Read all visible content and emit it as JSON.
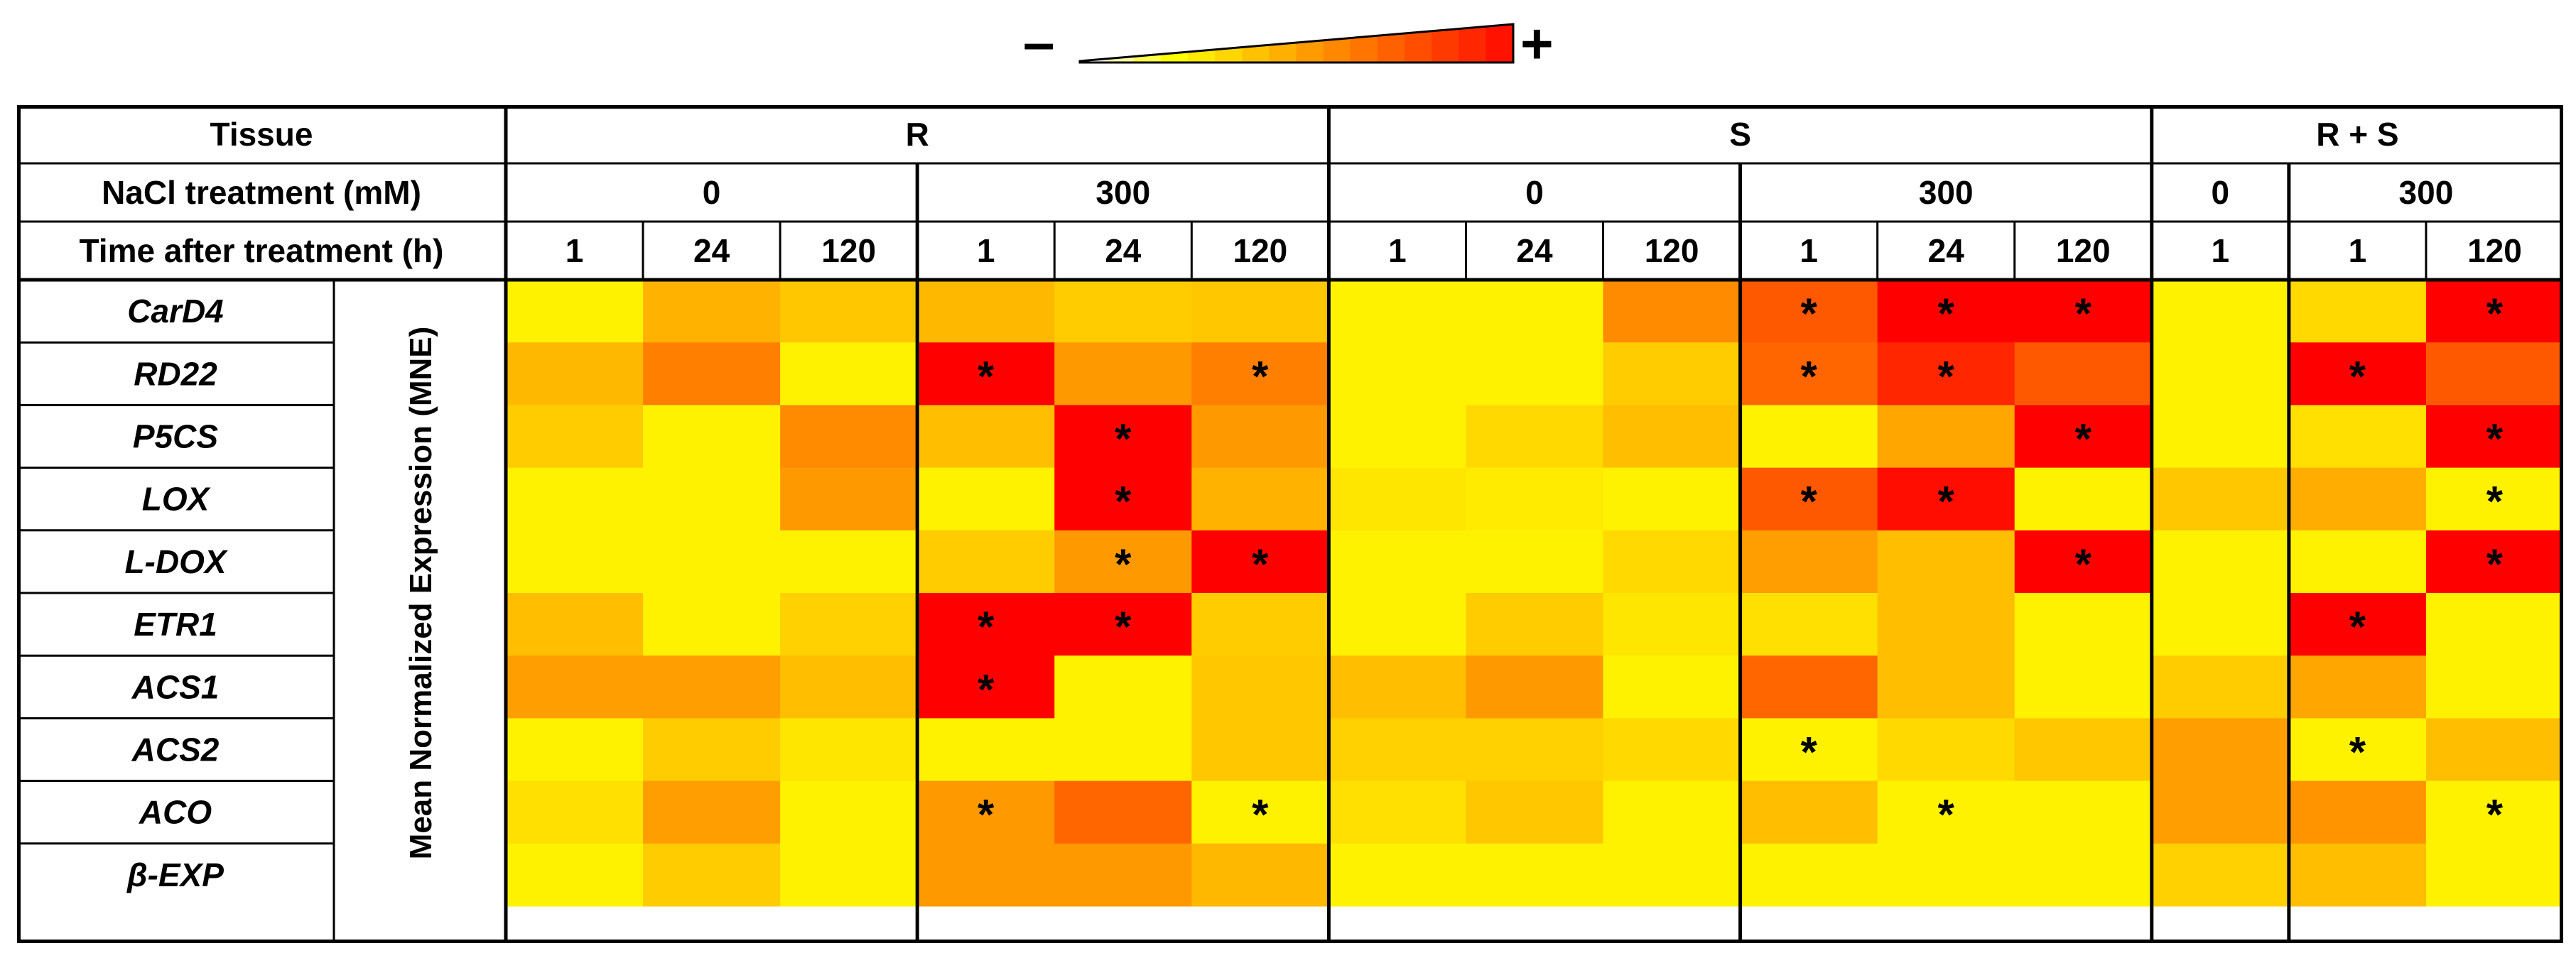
{
  "legend": {
    "minus": "–",
    "plus": "+",
    "low_color": "#ffffff",
    "mid_color": "#ffff00",
    "high_color": "#ff0000"
  },
  "table": {
    "tissue_header": "Tissue",
    "nacl_header": "NaCl treatment (mM)",
    "time_header": "Time after treatment (h)",
    "side_label": "Mean Normalized Expression (MNE)",
    "tissues": [
      {
        "label": "R",
        "span": 6
      },
      {
        "label": "S",
        "span": 6
      },
      {
        "label": "R + S",
        "span": 3
      }
    ],
    "nacl": [
      {
        "label": "0",
        "span": 3
      },
      {
        "label": "300",
        "span": 3
      },
      {
        "label": "0",
        "span": 3
      },
      {
        "label": "300",
        "span": 3
      },
      {
        "label": "0",
        "span": 1
      },
      {
        "label": "300",
        "span": 2
      }
    ],
    "times": [
      "1",
      "24",
      "120",
      "1",
      "24",
      "120",
      "1",
      "24",
      "120",
      "1",
      "24",
      "120",
      "1",
      "1",
      "120"
    ]
  },
  "chart_data": {
    "type": "heatmap",
    "title": "",
    "scale": {
      "min_label": "–",
      "max_label": "+",
      "range": [
        0,
        1
      ]
    },
    "genes": [
      "CarD4",
      "RD22",
      "P5CS",
      "LOX",
      "L-DOX",
      "ETR1",
      "ACS1",
      "ACS2",
      "ACO",
      "β-EXP"
    ],
    "columns": [
      "R 0mM 1h",
      "R 0mM 24h",
      "R 0mM 120h",
      "R 300mM 1h",
      "R 300mM 24h",
      "R 300mM 120h",
      "S 0mM 1h",
      "S 0mM 24h",
      "S 0mM 120h",
      "S 300mM 1h",
      "S 300mM 24h",
      "S 300mM 120h",
      "R+S 0mM 1h",
      "R+S 300mM 1h",
      "R+S 300mM 120h"
    ],
    "values": [
      [
        0.05,
        0.3,
        0.22,
        0.28,
        0.2,
        0.22,
        0.05,
        0.05,
        0.45,
        0.65,
        1.0,
        1.0,
        0.05,
        0.15,
        1.0
      ],
      [
        0.28,
        0.5,
        0.05,
        1.0,
        0.4,
        0.5,
        0.05,
        0.05,
        0.2,
        0.6,
        0.85,
        0.65,
        0.05,
        1.0,
        0.65
      ],
      [
        0.2,
        0.05,
        0.45,
        0.25,
        1.0,
        0.4,
        0.05,
        0.15,
        0.25,
        0.05,
        0.35,
        1.0,
        0.05,
        0.12,
        1.0
      ],
      [
        0.05,
        0.05,
        0.4,
        0.05,
        1.0,
        0.3,
        0.1,
        0.08,
        0.05,
        0.65,
        0.95,
        0.05,
        0.22,
        0.32,
        0.05
      ],
      [
        0.05,
        0.05,
        0.05,
        0.2,
        0.4,
        1.0,
        0.05,
        0.05,
        0.15,
        0.38,
        0.25,
        1.0,
        0.05,
        0.05,
        1.0
      ],
      [
        0.25,
        0.05,
        0.18,
        1.0,
        1.0,
        0.2,
        0.05,
        0.2,
        0.1,
        0.12,
        0.25,
        0.05,
        0.05,
        1.0,
        0.05
      ],
      [
        0.38,
        0.38,
        0.25,
        1.0,
        0.05,
        0.22,
        0.25,
        0.4,
        0.05,
        0.6,
        0.25,
        0.05,
        0.2,
        0.35,
        0.05
      ],
      [
        0.05,
        0.2,
        0.1,
        0.05,
        0.05,
        0.22,
        0.18,
        0.18,
        0.15,
        0.05,
        0.15,
        0.22,
        0.38,
        0.05,
        0.25
      ],
      [
        0.12,
        0.38,
        0.05,
        0.4,
        0.6,
        0.05,
        0.12,
        0.22,
        0.05,
        0.25,
        0.05,
        0.05,
        0.38,
        0.42,
        0.05
      ],
      [
        0.05,
        0.2,
        0.05,
        0.4,
        0.4,
        0.28,
        0.05,
        0.05,
        0.05,
        0.05,
        0.05,
        0.05,
        0.18,
        0.25,
        0.05
      ]
    ],
    "significant": [
      [
        0,
        0,
        0,
        0,
        0,
        0,
        0,
        0,
        0,
        1,
        1,
        1,
        0,
        0,
        1
      ],
      [
        0,
        0,
        0,
        1,
        0,
        1,
        0,
        0,
        0,
        1,
        1,
        0,
        0,
        1,
        0
      ],
      [
        0,
        0,
        0,
        0,
        1,
        0,
        0,
        0,
        0,
        0,
        0,
        1,
        0,
        0,
        1
      ],
      [
        0,
        0,
        0,
        0,
        1,
        0,
        0,
        0,
        0,
        1,
        1,
        0,
        0,
        0,
        1
      ],
      [
        0,
        0,
        0,
        0,
        1,
        1,
        0,
        0,
        0,
        0,
        0,
        1,
        0,
        0,
        1
      ],
      [
        0,
        0,
        0,
        1,
        1,
        0,
        0,
        0,
        0,
        0,
        0,
        0,
        0,
        1,
        0
      ],
      [
        0,
        0,
        0,
        1,
        0,
        0,
        0,
        0,
        0,
        0,
        0,
        0,
        0,
        0,
        0
      ],
      [
        0,
        0,
        0,
        0,
        0,
        0,
        0,
        0,
        0,
        1,
        0,
        0,
        0,
        1,
        0
      ],
      [
        0,
        0,
        0,
        1,
        0,
        1,
        0,
        0,
        0,
        0,
        1,
        0,
        0,
        0,
        1
      ],
      [
        0,
        0,
        0,
        0,
        0,
        0,
        0,
        0,
        0,
        0,
        0,
        0,
        0,
        0,
        0
      ]
    ],
    "significance_marker": "*"
  }
}
